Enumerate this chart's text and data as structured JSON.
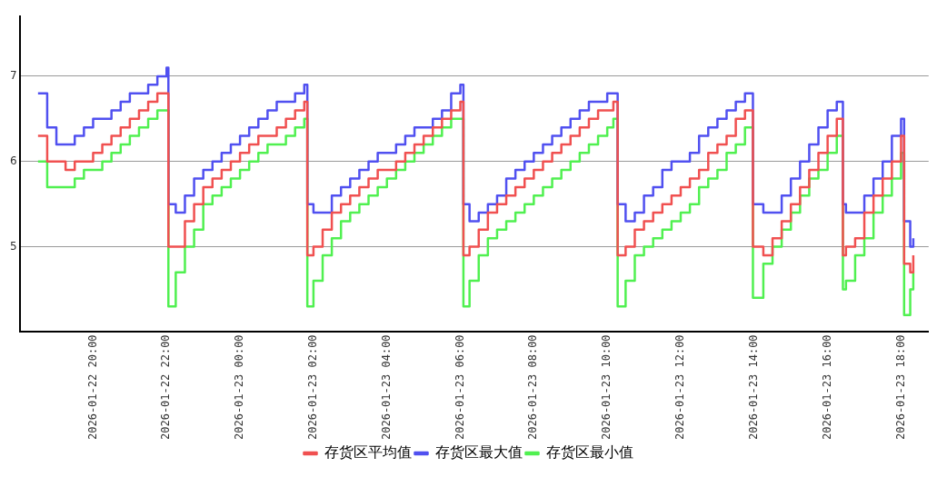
{
  "chart_data": {
    "type": "step",
    "x": [
      "2026-01-22T18:30",
      "2026-01-22T18:45",
      "2026-01-22T19:00",
      "2026-01-22T19:15",
      "2026-01-22T19:30",
      "2026-01-22T19:45",
      "2026-01-22T20:00",
      "2026-01-22T20:15",
      "2026-01-22T20:30",
      "2026-01-22T20:45",
      "2026-01-22T21:00",
      "2026-01-22T21:15",
      "2026-01-22T21:30",
      "2026-01-22T21:45",
      "2026-01-22T22:00",
      "2026-01-22T22:03",
      "2026-01-22T22:15",
      "2026-01-22T22:30",
      "2026-01-22T22:45",
      "2026-01-22T23:00",
      "2026-01-22T23:15",
      "2026-01-22T23:30",
      "2026-01-22T23:45",
      "2026-01-23T00:00",
      "2026-01-23T00:15",
      "2026-01-23T00:30",
      "2026-01-23T00:45",
      "2026-01-23T01:00",
      "2026-01-23T01:15",
      "2026-01-23T01:30",
      "2026-01-23T01:45",
      "2026-01-23T01:50",
      "2026-01-23T02:00",
      "2026-01-23T02:15",
      "2026-01-23T02:30",
      "2026-01-23T02:45",
      "2026-01-23T03:00",
      "2026-01-23T03:15",
      "2026-01-23T03:30",
      "2026-01-23T03:45",
      "2026-01-23T04:00",
      "2026-01-23T04:15",
      "2026-01-23T04:30",
      "2026-01-23T04:45",
      "2026-01-23T05:00",
      "2026-01-23T05:15",
      "2026-01-23T05:30",
      "2026-01-23T05:45",
      "2026-01-23T06:00",
      "2026-01-23T06:05",
      "2026-01-23T06:15",
      "2026-01-23T06:30",
      "2026-01-23T06:45",
      "2026-01-23T07:00",
      "2026-01-23T07:15",
      "2026-01-23T07:30",
      "2026-01-23T07:45",
      "2026-01-23T08:00",
      "2026-01-23T08:15",
      "2026-01-23T08:30",
      "2026-01-23T08:45",
      "2026-01-23T09:00",
      "2026-01-23T09:15",
      "2026-01-23T09:30",
      "2026-01-23T09:45",
      "2026-01-23T10:00",
      "2026-01-23T10:10",
      "2026-01-23T10:17",
      "2026-01-23T10:30",
      "2026-01-23T10:45",
      "2026-01-23T11:00",
      "2026-01-23T11:15",
      "2026-01-23T11:30",
      "2026-01-23T11:45",
      "2026-01-23T12:00",
      "2026-01-23T12:15",
      "2026-01-23T12:30",
      "2026-01-23T12:45",
      "2026-01-23T13:00",
      "2026-01-23T13:15",
      "2026-01-23T13:30",
      "2026-01-23T13:45",
      "2026-01-23T13:58",
      "2026-01-23T14:15",
      "2026-01-23T14:30",
      "2026-01-23T14:45",
      "2026-01-23T15:00",
      "2026-01-23T15:15",
      "2026-01-23T15:30",
      "2026-01-23T15:45",
      "2026-01-23T16:00",
      "2026-01-23T16:15",
      "2026-01-23T16:25",
      "2026-01-23T16:30",
      "2026-01-23T16:45",
      "2026-01-23T17:00",
      "2026-01-23T17:15",
      "2026-01-23T17:30",
      "2026-01-23T17:45",
      "2026-01-23T18:00",
      "2026-01-23T18:05",
      "2026-01-23T18:15",
      "2026-01-23T18:20"
    ],
    "series": [
      {
        "name": "存货区平均值",
        "color": "#f05050",
        "values": [
          6.3,
          6.0,
          6.0,
          5.9,
          6.0,
          6.0,
          6.1,
          6.2,
          6.3,
          6.4,
          6.5,
          6.6,
          6.7,
          6.8,
          6.8,
          5.0,
          5.0,
          5.3,
          5.5,
          5.7,
          5.8,
          5.9,
          6.0,
          6.1,
          6.2,
          6.3,
          6.3,
          6.4,
          6.5,
          6.6,
          6.7,
          4.9,
          5.0,
          5.2,
          5.4,
          5.5,
          5.6,
          5.7,
          5.8,
          5.9,
          5.9,
          6.0,
          6.1,
          6.2,
          6.3,
          6.4,
          6.5,
          6.6,
          6.7,
          4.9,
          5.0,
          5.2,
          5.4,
          5.5,
          5.6,
          5.7,
          5.8,
          5.9,
          6.0,
          6.1,
          6.2,
          6.3,
          6.4,
          6.5,
          6.6,
          6.6,
          6.7,
          4.9,
          5.0,
          5.2,
          5.3,
          5.4,
          5.5,
          5.6,
          5.7,
          5.8,
          5.9,
          6.1,
          6.2,
          6.3,
          6.5,
          6.6,
          5.0,
          4.9,
          5.1,
          5.3,
          5.5,
          5.7,
          5.9,
          6.1,
          6.3,
          6.5,
          4.9,
          5.0,
          5.1,
          5.4,
          5.6,
          5.8,
          6.0,
          6.3,
          4.8,
          4.7,
          4.9
        ]
      },
      {
        "name": "存货区最大值",
        "color": "#5050f0",
        "values": [
          6.8,
          6.4,
          6.2,
          6.2,
          6.3,
          6.4,
          6.5,
          6.5,
          6.6,
          6.7,
          6.8,
          6.8,
          6.9,
          7.0,
          7.1,
          5.5,
          5.4,
          5.6,
          5.8,
          5.9,
          6.0,
          6.1,
          6.2,
          6.3,
          6.4,
          6.5,
          6.6,
          6.7,
          6.7,
          6.8,
          6.9,
          5.5,
          5.4,
          5.4,
          5.6,
          5.7,
          5.8,
          5.9,
          6.0,
          6.1,
          6.1,
          6.2,
          6.3,
          6.4,
          6.4,
          6.5,
          6.6,
          6.8,
          6.9,
          5.5,
          5.3,
          5.4,
          5.5,
          5.6,
          5.8,
          5.9,
          6.0,
          6.1,
          6.2,
          6.3,
          6.4,
          6.5,
          6.6,
          6.7,
          6.7,
          6.8,
          6.8,
          5.5,
          5.3,
          5.4,
          5.6,
          5.7,
          5.9,
          6.0,
          6.0,
          6.1,
          6.3,
          6.4,
          6.5,
          6.6,
          6.7,
          6.8,
          5.5,
          5.4,
          5.4,
          5.6,
          5.8,
          6.0,
          6.2,
          6.4,
          6.6,
          6.7,
          5.5,
          5.4,
          5.4,
          5.6,
          5.8,
          6.0,
          6.3,
          6.5,
          5.3,
          5.0,
          5.1
        ]
      },
      {
        "name": "存货区最小值",
        "color": "#50f050",
        "values": [
          6.0,
          5.7,
          5.7,
          5.7,
          5.8,
          5.9,
          5.9,
          6.0,
          6.1,
          6.2,
          6.3,
          6.4,
          6.5,
          6.6,
          6.6,
          4.3,
          4.7,
          5.0,
          5.2,
          5.5,
          5.6,
          5.7,
          5.8,
          5.9,
          6.0,
          6.1,
          6.2,
          6.2,
          6.3,
          6.4,
          6.5,
          4.3,
          4.6,
          4.9,
          5.1,
          5.3,
          5.4,
          5.5,
          5.6,
          5.7,
          5.8,
          5.9,
          6.0,
          6.1,
          6.2,
          6.3,
          6.4,
          6.5,
          6.5,
          4.3,
          4.6,
          4.9,
          5.1,
          5.2,
          5.3,
          5.4,
          5.5,
          5.6,
          5.7,
          5.8,
          5.9,
          6.0,
          6.1,
          6.2,
          6.3,
          6.4,
          6.5,
          4.3,
          4.6,
          4.9,
          5.0,
          5.1,
          5.2,
          5.3,
          5.4,
          5.5,
          5.7,
          5.8,
          5.9,
          6.1,
          6.2,
          6.4,
          4.4,
          4.8,
          5.0,
          5.2,
          5.4,
          5.6,
          5.8,
          5.9,
          6.1,
          6.3,
          4.5,
          4.6,
          4.9,
          5.1,
          5.4,
          5.6,
          5.8,
          6.1,
          4.2,
          4.5,
          4.7
        ]
      }
    ],
    "xlim": [
      "2026-01-22T18:00",
      "2026-01-23T18:45"
    ],
    "xticks": [
      {
        "value": "2026-01-22T20:00",
        "label": "2026-01-22 20:00"
      },
      {
        "value": "2026-01-22T22:00",
        "label": "2026-01-22 22:00"
      },
      {
        "value": "2026-01-23T00:00",
        "label": "2026-01-23 00:00"
      },
      {
        "value": "2026-01-23T02:00",
        "label": "2026-01-23 02:00"
      },
      {
        "value": "2026-01-23T04:00",
        "label": "2026-01-23 04:00"
      },
      {
        "value": "2026-01-23T06:00",
        "label": "2026-01-23 06:00"
      },
      {
        "value": "2026-01-23T08:00",
        "label": "2026-01-23 08:00"
      },
      {
        "value": "2026-01-23T10:00",
        "label": "2026-01-23 10:00"
      },
      {
        "value": "2026-01-23T12:00",
        "label": "2026-01-23 12:00"
      },
      {
        "value": "2026-01-23T14:00",
        "label": "2026-01-23 14:00"
      },
      {
        "value": "2026-01-23T16:00",
        "label": "2026-01-23 16:00"
      },
      {
        "value": "2026-01-23T18:00",
        "label": "2026-01-23 18:00"
      }
    ],
    "ylim": [
      4,
      7.7
    ],
    "yticks": [
      5,
      6,
      7
    ],
    "grid": "y",
    "legend": "bottom",
    "marker": "none",
    "line_style": "solid"
  }
}
